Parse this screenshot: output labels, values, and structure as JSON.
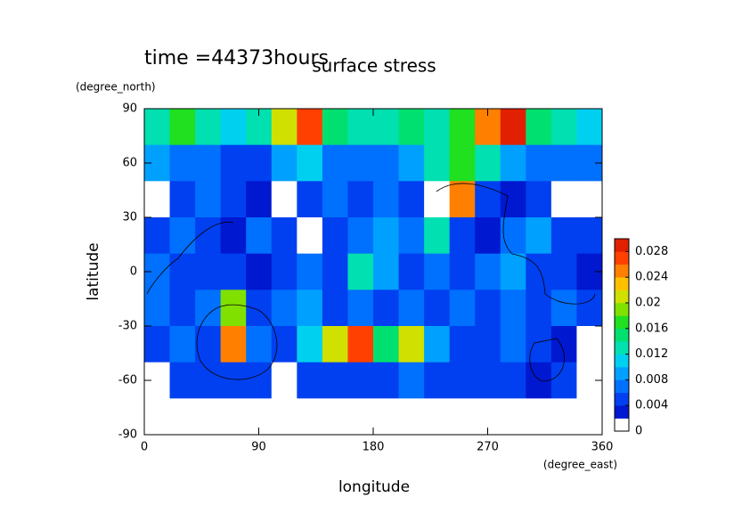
{
  "chart_data": {
    "type": "contour",
    "title": "surface stress",
    "subtitle": "time =44373hours",
    "x_label": "longitude",
    "x_unit": "(degree_east)",
    "y_label": "latitude",
    "y_unit": "(degree_north)",
    "x": [
      10,
      30,
      50,
      70,
      90,
      110,
      130,
      150,
      170,
      190,
      210,
      230,
      250,
      270,
      290,
      310,
      330,
      350
    ],
    "y": [
      80,
      60,
      40,
      20,
      0,
      -20,
      -40,
      -60,
      -80
    ],
    "z": [
      [
        0.012,
        0.016,
        0.012,
        0.01,
        0.012,
        0.02,
        0.026,
        0.014,
        0.012,
        0.012,
        0.014,
        0.012,
        0.016,
        0.024,
        0.028,
        0.014,
        0.012,
        0.01
      ],
      [
        0.008,
        0.006,
        0.006,
        0.004,
        0.004,
        0.008,
        0.01,
        0.006,
        0.006,
        0.006,
        0.008,
        0.012,
        0.016,
        0.012,
        0.008,
        0.006,
        0.006,
        0.006
      ],
      [
        0,
        0.004,
        0.006,
        0.004,
        0.002,
        0,
        0.004,
        0.006,
        0.004,
        0.006,
        0.004,
        0,
        0.024,
        0.004,
        0.002,
        0.004,
        0,
        0
      ],
      [
        0.004,
        0.006,
        0.004,
        0.002,
        0.006,
        0.004,
        0,
        0.004,
        0.006,
        0.008,
        0.006,
        0.012,
        0.004,
        0.002,
        0.006,
        0.008,
        0.004,
        0.004
      ],
      [
        0.006,
        0.004,
        0.004,
        0.004,
        0.002,
        0.004,
        0.006,
        0.004,
        0.012,
        0.008,
        0.004,
        0.006,
        0.004,
        0.006,
        0.008,
        0.004,
        0.004,
        0.002
      ],
      [
        0.006,
        0.004,
        0.006,
        0.018,
        0.004,
        0.006,
        0.008,
        0.004,
        0.006,
        0.004,
        0.006,
        0.004,
        0.006,
        0.004,
        0.006,
        0.004,
        0.006,
        0.004
      ],
      [
        0.004,
        0.006,
        0.004,
        0.024,
        0.006,
        0.004,
        0.01,
        0.02,
        0.026,
        0.014,
        0.02,
        0.008,
        0.004,
        0.004,
        0.006,
        0.004,
        0.002,
        0
      ],
      [
        0,
        0.004,
        0.004,
        0.004,
        0.004,
        0,
        0.004,
        0.004,
        0.004,
        0.004,
        0.006,
        0.004,
        0.004,
        0.004,
        0.004,
        0.002,
        0.004,
        0
      ],
      [
        0,
        0,
        0,
        0,
        0,
        0,
        0,
        0,
        0,
        0,
        0,
        0,
        0,
        0,
        0,
        0,
        0,
        0
      ]
    ],
    "xlim": [
      0,
      360
    ],
    "xticks": [
      0,
      90,
      180,
      270,
      360
    ],
    "ylim": [
      -90,
      90
    ],
    "yticks": [
      -90,
      -60,
      -30,
      0,
      30,
      60,
      90
    ],
    "clim": [
      0,
      0.03
    ],
    "cticks": [
      0,
      0.004,
      0.008,
      0.012,
      0.016,
      0.02,
      0.024,
      0.028
    ],
    "colormap": [
      "#ffffff",
      "#0018d0",
      "#0040f0",
      "#0070ff",
      "#00a0ff",
      "#00d0f0",
      "#00e0b0",
      "#00e070",
      "#20e020",
      "#80e000",
      "#d0e000",
      "#ffc000",
      "#ff8000",
      "#ff4000",
      "#e02000"
    ]
  }
}
